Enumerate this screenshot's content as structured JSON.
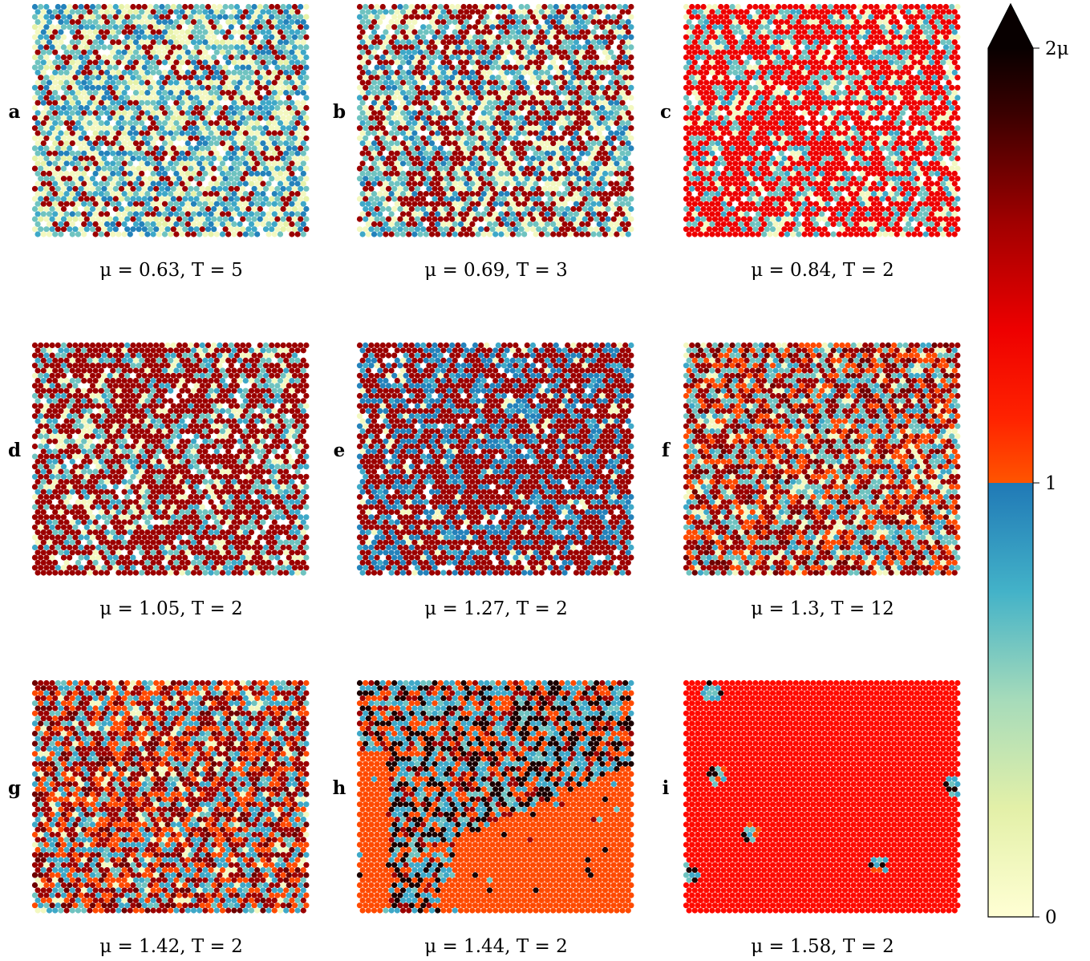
{
  "panels": [
    {
      "label": "a",
      "caption": "μ = 0.63, T = 5"
    },
    {
      "label": "b",
      "caption": "μ = 0.69, T = 3"
    },
    {
      "label": "c",
      "caption": "μ = 0.84, T = 2"
    },
    {
      "label": "d",
      "caption": "μ = 1.05, T = 2"
    },
    {
      "label": "e",
      "caption": "μ = 1.27, T = 2"
    },
    {
      "label": "f",
      "caption": "μ = 1.3, T = 12"
    },
    {
      "label": "g",
      "caption": "μ = 1.42, T = 2"
    },
    {
      "label": "h",
      "caption": "μ = 1.44, T = 2"
    },
    {
      "label": "i",
      "caption": "μ = 1.58, T = 2"
    }
  ],
  "colorbar": {
    "ticks": [
      "2μ",
      "1",
      "0"
    ]
  }
}
